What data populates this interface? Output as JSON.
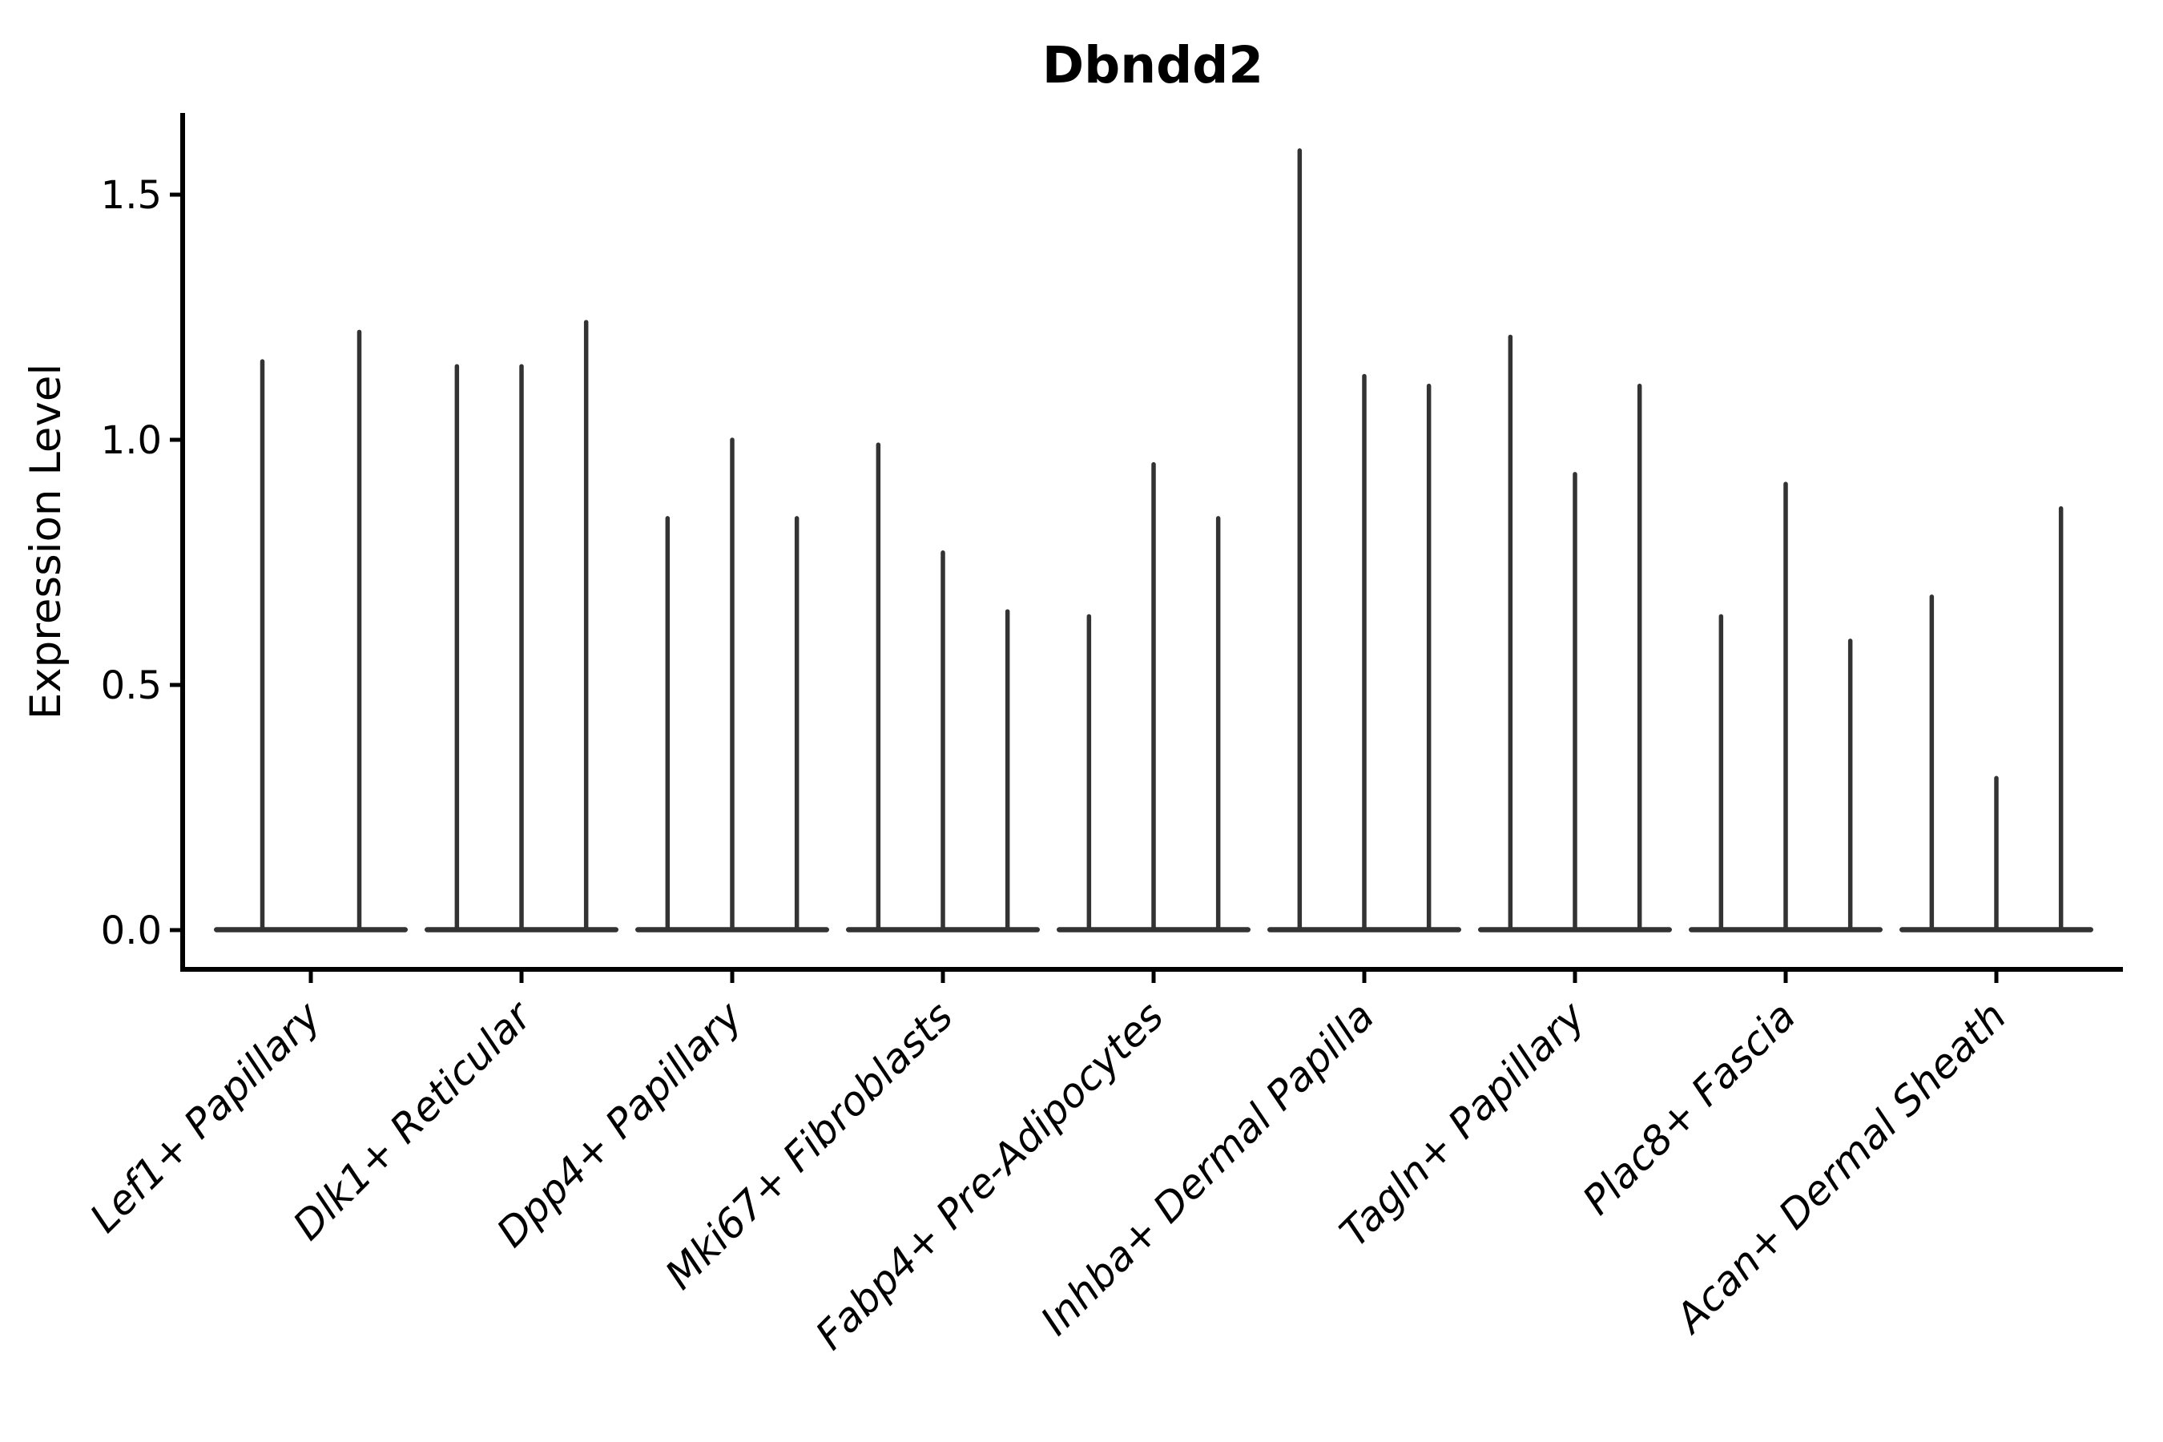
{
  "figure": {
    "title": "Dbndd2",
    "y_axis": {
      "label": "Expression Level",
      "tick_labels": [
        "0.0",
        "0.5",
        "1.0",
        "1.5"
      ]
    },
    "x_axis": {
      "label": "",
      "categories": [
        "Lef1+ Papillary",
        "Dlk1+ Reticular",
        "Dpp4+ Papillary",
        "Mki67+ Fibroblasts",
        "Fabp4+ Pre-Adipocytes",
        "Inhba+ Dermal Papilla",
        "Tagln+ Papillary",
        "Plac8+ Fascia",
        "Acan+ Dermal Sheath"
      ]
    }
  },
  "colors": {
    "violin": "#333333",
    "axis": "#000000",
    "text": "#000000",
    "background": "#ffffff"
  },
  "chart_data": {
    "type": "violin",
    "title": "Dbndd2",
    "xlabel": "",
    "ylabel": "Expression Level",
    "ylim": [
      -0.08,
      1.67
    ],
    "yticks": [
      0.0,
      0.5,
      1.0,
      1.5
    ],
    "grid": false,
    "legend": "none",
    "style": "needle-thin violins: bulk of distribution at 0 forming a flat wide base, single thin spike rising to the max expression value per violin",
    "categories": [
      "Lef1+ Papillary",
      "Dlk1+ Reticular",
      "Dpp4+ Papillary",
      "Mki67+ Fibroblasts",
      "Fabp4+ Pre-Adipocytes",
      "Inhba+ Dermal Papilla",
      "Tagln+ Papillary",
      "Plac8+ Fascia",
      "Acan+ Dermal Sheath"
    ],
    "groups": [
      {
        "label": "Lef1+ Papillary",
        "n_violins": 2,
        "violin_max_expression": [
          1.16,
          1.22
        ]
      },
      {
        "label": "Dlk1+ Reticular",
        "n_violins": 3,
        "violin_max_expression": [
          1.15,
          1.15,
          1.24
        ]
      },
      {
        "label": "Dpp4+ Papillary",
        "n_violins": 3,
        "violin_max_expression": [
          0.84,
          1.0,
          0.84
        ]
      },
      {
        "label": "Mki67+ Fibroblasts",
        "n_violins": 3,
        "violin_max_expression": [
          0.99,
          0.77,
          0.65
        ]
      },
      {
        "label": "Fabp4+ Pre-Adipocytes",
        "n_violins": 3,
        "violin_max_expression": [
          0.64,
          0.95,
          0.84
        ]
      },
      {
        "label": "Inhba+ Dermal Papilla",
        "n_violins": 3,
        "violin_max_expression": [
          1.59,
          1.13,
          1.11
        ]
      },
      {
        "label": "Tagln+ Papillary",
        "n_violins": 3,
        "violin_max_expression": [
          1.21,
          0.93,
          1.11
        ]
      },
      {
        "label": "Plac8+ Fascia",
        "n_violins": 3,
        "violin_max_expression": [
          0.64,
          0.91,
          0.59
        ]
      },
      {
        "label": "Acan+ Dermal Sheath",
        "n_violins": 3,
        "violin_max_expression": [
          0.68,
          0.31,
          0.86
        ]
      }
    ]
  }
}
